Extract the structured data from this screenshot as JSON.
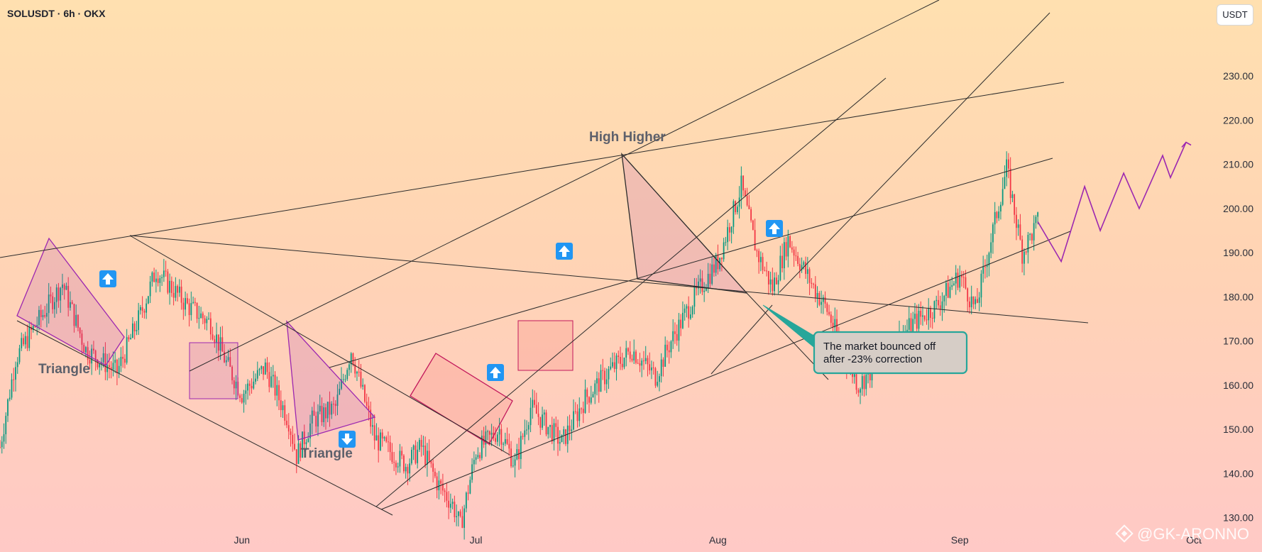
{
  "header": {
    "symbol": "SOLUSDT · 6h · OKX",
    "currency": "USDT"
  },
  "watermark": "@GK-ARONNO",
  "annotations": {
    "triangle_left": "Triangle",
    "triangle_mid": "Triangle",
    "high_label": "High Higher",
    "callout_line1": "The market bounced off",
    "callout_line2": "after -23% correction"
  },
  "chart_data": {
    "type": "candlestick",
    "title": "SOLUSDT · 6h · OKX",
    "y_axis": {
      "label": "USDT",
      "ticks": [
        130,
        140,
        150,
        160,
        170,
        180,
        190,
        200,
        210,
        220,
        230
      ],
      "ylim": [
        122,
        240
      ]
    },
    "x_axis": {
      "ticks": [
        "Jun",
        "Jul",
        "Aug",
        "Sep",
        "Oct"
      ],
      "range": [
        "2024-05-01",
        "2024-10-01"
      ]
    },
    "price_path": [
      [
        "2024-05-01",
        146
      ],
      [
        "2024-05-03",
        166
      ],
      [
        "2024-05-05",
        172
      ],
      [
        "2024-05-09",
        183
      ],
      [
        "2024-05-12",
        168
      ],
      [
        "2024-05-16",
        163
      ],
      [
        "2024-05-19",
        176
      ],
      [
        "2024-05-21",
        186
      ],
      [
        "2024-05-25",
        178
      ],
      [
        "2024-05-28",
        174
      ],
      [
        "2024-05-30",
        165
      ],
      [
        "2024-06-01",
        158
      ],
      [
        "2024-06-04",
        164
      ],
      [
        "2024-06-07",
        152
      ],
      [
        "2024-06-08",
        144
      ],
      [
        "2024-06-10",
        152
      ],
      [
        "2024-06-13",
        155
      ],
      [
        "2024-06-15",
        168
      ],
      [
        "2024-06-18",
        148
      ],
      [
        "2024-06-22",
        142
      ],
      [
        "2024-06-24",
        146
      ],
      [
        "2024-06-26",
        138
      ],
      [
        "2024-06-28",
        133
      ],
      [
        "2024-06-29",
        128
      ],
      [
        "2024-07-01",
        145
      ],
      [
        "2024-07-04",
        150
      ],
      [
        "2024-07-06",
        142
      ],
      [
        "2024-07-08",
        155
      ],
      [
        "2024-07-12",
        147
      ],
      [
        "2024-07-15",
        157
      ],
      [
        "2024-07-18",
        163
      ],
      [
        "2024-07-21",
        168
      ],
      [
        "2024-07-24",
        162
      ],
      [
        "2024-07-26",
        170
      ],
      [
        "2024-07-29",
        180
      ],
      [
        "2024-08-01",
        188
      ],
      [
        "2024-08-04",
        205
      ],
      [
        "2024-08-06",
        190
      ],
      [
        "2024-08-08",
        182
      ],
      [
        "2024-08-10",
        193
      ],
      [
        "2024-08-13",
        183
      ],
      [
        "2024-08-15",
        177
      ],
      [
        "2024-08-17",
        168
      ],
      [
        "2024-08-19",
        160
      ],
      [
        "2024-08-22",
        166
      ],
      [
        "2024-08-26",
        174
      ],
      [
        "2024-08-29",
        178
      ],
      [
        "2024-09-01",
        185
      ],
      [
        "2024-09-03",
        177
      ],
      [
        "2024-09-05",
        193
      ],
      [
        "2024-09-07",
        209
      ],
      [
        "2024-09-09",
        190
      ],
      [
        "2024-09-11",
        197
      ]
    ],
    "projection": [
      [
        "2024-09-14",
        188
      ],
      [
        "2024-09-17",
        205
      ],
      [
        "2024-09-19",
        195
      ],
      [
        "2024-09-22",
        208
      ],
      [
        "2024-09-24",
        200
      ],
      [
        "2024-09-27",
        212
      ],
      [
        "2024-09-28",
        207
      ],
      [
        "2024-09-30",
        215
      ]
    ],
    "colors": {
      "up": "#089981",
      "down": "#f23645",
      "lines": "#2b2b2b",
      "pattern": "#9c27b0",
      "callout": "#26a69a",
      "axis_text": "#2a2e39",
      "label": "#5d606b"
    }
  }
}
